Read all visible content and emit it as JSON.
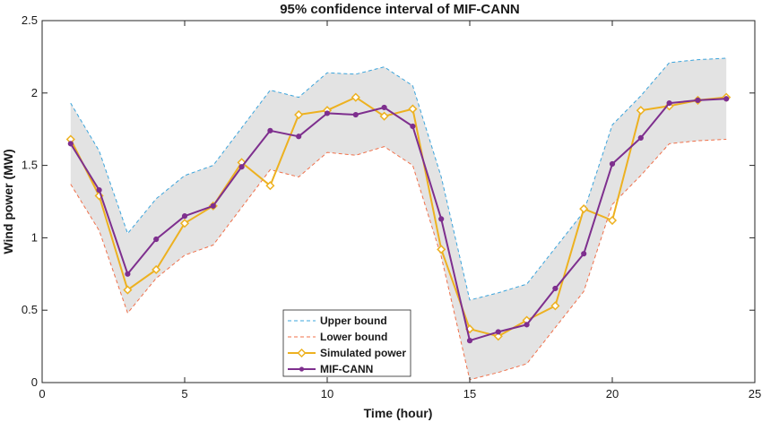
{
  "chart_data": {
    "type": "line",
    "title": "95% confidence interval of MIF-CANN",
    "xlabel": "Time (hour)",
    "ylabel": "Wind power (MW)",
    "xlim": [
      0,
      25
    ],
    "ylim": [
      0,
      2.5
    ],
    "xticks": [
      0,
      5,
      10,
      15,
      20,
      25
    ],
    "yticks": [
      0,
      0.5,
      1,
      1.5,
      2,
      2.5
    ],
    "xtick_labels": [
      "0",
      "5",
      "10",
      "15",
      "20",
      "25"
    ],
    "ytick_labels": [
      "0",
      "0.5",
      "1",
      "1.5",
      "2",
      "2.5"
    ],
    "grid": false,
    "legend_position": "bottom-center",
    "band_color": "#e3e3e3",
    "x": [
      1,
      2,
      3,
      4,
      5,
      6,
      7,
      8,
      9,
      10,
      11,
      12,
      13,
      14,
      15,
      16,
      17,
      18,
      19,
      20,
      21,
      22,
      23,
      24
    ],
    "series": [
      {
        "name": "Upper bound",
        "style": "dashed",
        "color": "#3ba4dc",
        "values": [
          1.93,
          1.6,
          1.03,
          1.27,
          1.43,
          1.5,
          1.76,
          2.02,
          1.97,
          2.14,
          2.13,
          2.18,
          2.05,
          1.42,
          0.57,
          0.62,
          0.68,
          0.93,
          1.18,
          1.78,
          1.98,
          2.21,
          2.23,
          2.24
        ]
      },
      {
        "name": "Lower bound",
        "style": "dashed",
        "color": "#f0704a",
        "values": [
          1.37,
          1.05,
          0.48,
          0.72,
          0.88,
          0.95,
          1.21,
          1.47,
          1.42,
          1.59,
          1.57,
          1.63,
          1.5,
          0.87,
          0.02,
          0.07,
          0.13,
          0.38,
          0.63,
          1.23,
          1.43,
          1.65,
          1.67,
          1.68
        ]
      },
      {
        "name": "Simulated power",
        "style": "solid",
        "marker": "diamond",
        "color": "#edb120",
        "values": [
          1.68,
          1.29,
          0.64,
          0.78,
          1.1,
          1.22,
          1.52,
          1.36,
          1.85,
          1.88,
          1.97,
          1.84,
          1.89,
          0.92,
          0.37,
          0.32,
          0.43,
          0.53,
          1.2,
          1.12,
          1.88,
          1.91,
          1.95,
          1.97
        ]
      },
      {
        "name": "MIF-CANN",
        "style": "solid",
        "marker": "circle",
        "color": "#7e2f8e",
        "values": [
          1.65,
          1.33,
          0.75,
          0.99,
          1.15,
          1.22,
          1.49,
          1.74,
          1.7,
          1.86,
          1.85,
          1.9,
          1.77,
          1.13,
          0.29,
          0.35,
          0.4,
          0.65,
          0.89,
          1.51,
          1.69,
          1.93,
          1.95,
          1.96
        ]
      }
    ]
  }
}
